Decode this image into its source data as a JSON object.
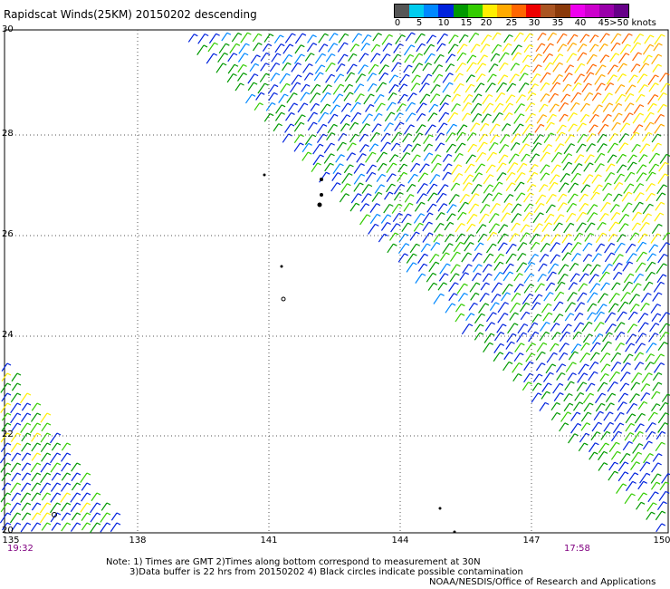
{
  "title": "Rapidscat Winds(25KM) 20150202 descending",
  "legend": {
    "labels": [
      "0",
      "5",
      "10",
      "15",
      "20",
      "25",
      "30",
      "35",
      "40",
      "45",
      ">50 knots"
    ],
    "colors": [
      "#555555",
      "#00ccee",
      "#0088ff",
      "#0022dd",
      "#009900",
      "#33cc00",
      "#ffee00",
      "#ffaa00",
      "#ff6600",
      "#ee0000",
      "#aa5522",
      "#8b3a0a",
      "#ee00ee",
      "#cc00cc",
      "#9900aa",
      "#660088"
    ]
  },
  "y_ticks": [
    "30",
    "28",
    "26",
    "24",
    "22",
    "20"
  ],
  "x_ticks": [
    "135",
    "138",
    "141",
    "144",
    "147",
    "150"
  ],
  "times": {
    "left": "19:32",
    "right": "17:58"
  },
  "note": {
    "line1": "Note: 1) Times are GMT 2)Times along bottom correspond to measurement at 30N",
    "line2": "3)Data buffer is 22 hrs from 20150202 4) Black circles indicate possible contamination"
  },
  "credit": "NOAA/NESDIS/Office of Research and Applications",
  "map": {
    "lon_range": [
      135,
      150
    ],
    "lat_range": [
      20,
      30
    ],
    "grid": true,
    "grid_style": "dotted"
  }
}
